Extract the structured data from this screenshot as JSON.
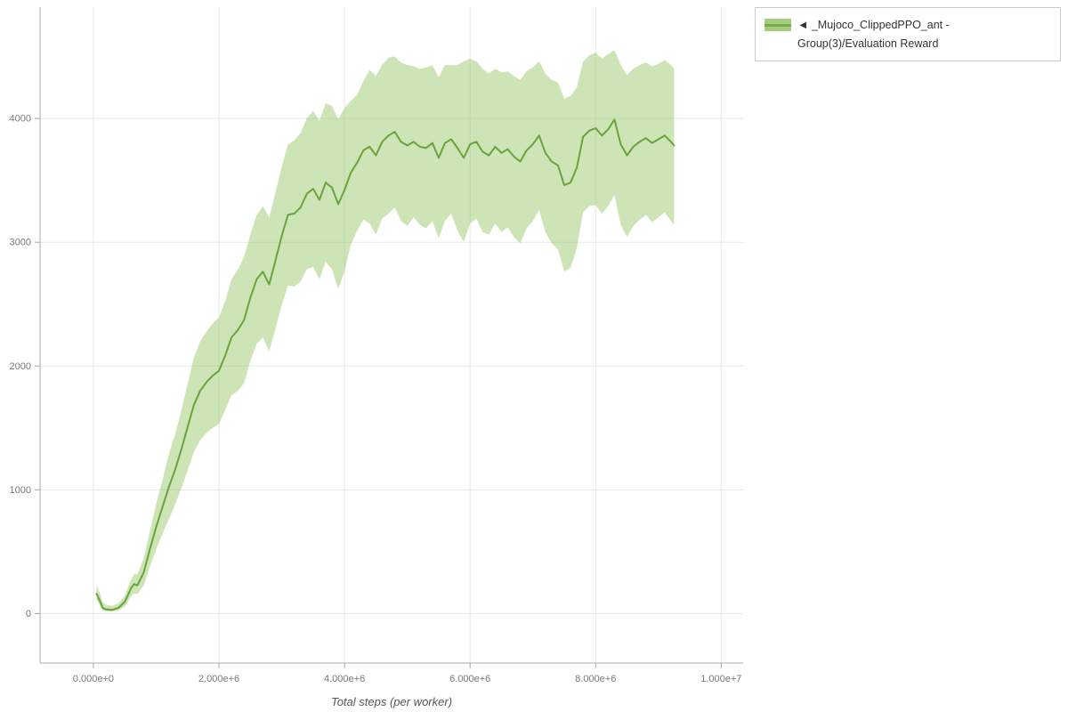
{
  "legend": {
    "label": "◄ _Mujoco_ClippedPPO_ant - Group(3)/Evaluation Reward"
  },
  "colors": {
    "line": "#69a33b",
    "band": "#9cc96e",
    "band_opacity": 0.5,
    "grid": "#e7e7e7",
    "axis": "#a8a8a8",
    "tick_label": "#777777",
    "axis_title": "#555555",
    "legend_border": "#cccccc"
  },
  "chart_data": {
    "type": "line",
    "title": "",
    "xlabel": "Total steps (per worker)",
    "ylabel": "",
    "grid": true,
    "legend_position": "top-right",
    "xlim": [
      -850000,
      10350000
    ],
    "ylim": [
      -400,
      4900
    ],
    "x_unit": 1000000,
    "x_ticks": [
      {
        "value": 0,
        "label": "0.000e+0"
      },
      {
        "value": 2000000,
        "label": "2.000e+6"
      },
      {
        "value": 4000000,
        "label": "4.000e+6"
      },
      {
        "value": 6000000,
        "label": "6.000e+6"
      },
      {
        "value": 8000000,
        "label": "8.000e+6"
      },
      {
        "value": 10000000,
        "label": "1.000e+7"
      }
    ],
    "y_ticks": [
      {
        "value": 0,
        "label": "0"
      },
      {
        "value": 1000,
        "label": "1000"
      },
      {
        "value": 2000,
        "label": "2000"
      },
      {
        "value": 3000,
        "label": "3000"
      },
      {
        "value": 4000,
        "label": "4000"
      }
    ],
    "series": [
      {
        "name": "_Mujoco_ClippedPPO_ant - Group(3)/Evaluation Reward",
        "legend_label": "◄ _Mujoco_ClippedPPO_ant - Group(3)/Evaluation Reward",
        "has_band": true,
        "points_format": [
          "x_millions",
          "y_mean",
          "y_lower",
          "y_upper"
        ],
        "points": [
          [
            0.05,
            160,
            115,
            230
          ],
          [
            0.1,
            105,
            65,
            170
          ],
          [
            0.15,
            45,
            22,
            90
          ],
          [
            0.2,
            34,
            18,
            70
          ],
          [
            0.3,
            30,
            16,
            62
          ],
          [
            0.4,
            46,
            24,
            84
          ],
          [
            0.5,
            95,
            55,
            145
          ],
          [
            0.6,
            205,
            140,
            275
          ],
          [
            0.65,
            238,
            165,
            320
          ],
          [
            0.7,
            228,
            158,
            315
          ],
          [
            0.8,
            330,
            225,
            445
          ],
          [
            0.9,
            520,
            380,
            665
          ],
          [
            1.0,
            700,
            520,
            885
          ],
          [
            1.1,
            860,
            645,
            1080
          ],
          [
            1.2,
            1020,
            760,
            1285
          ],
          [
            1.3,
            1160,
            880,
            1445
          ],
          [
            1.4,
            1325,
            1010,
            1640
          ],
          [
            1.5,
            1505,
            1155,
            1855
          ],
          [
            1.6,
            1685,
            1305,
            2065
          ],
          [
            1.7,
            1800,
            1400,
            2200
          ],
          [
            1.8,
            1868,
            1458,
            2278
          ],
          [
            1.9,
            1922,
            1500,
            2344
          ],
          [
            2.0,
            1962,
            1532,
            2392
          ],
          [
            2.1,
            2085,
            1645,
            2525
          ],
          [
            2.2,
            2232,
            1762,
            2702
          ],
          [
            2.3,
            2290,
            1800,
            2780
          ],
          [
            2.4,
            2372,
            1862,
            2882
          ],
          [
            2.5,
            2552,
            2042,
            3062
          ],
          [
            2.6,
            2700,
            2180,
            3220
          ],
          [
            2.7,
            2762,
            2232,
            3292
          ],
          [
            2.8,
            2658,
            2118,
            3198
          ],
          [
            2.9,
            2852,
            2302,
            3402
          ],
          [
            3.0,
            3052,
            2492,
            3612
          ],
          [
            3.1,
            3222,
            2652,
            3792
          ],
          [
            3.2,
            3232,
            2642,
            3822
          ],
          [
            3.3,
            3282,
            2682,
            3882
          ],
          [
            3.4,
            3392,
            2782,
            4002
          ],
          [
            3.5,
            3432,
            2802,
            4062
          ],
          [
            3.6,
            3342,
            2702,
            3982
          ],
          [
            3.7,
            3482,
            2842,
            4122
          ],
          [
            3.8,
            3442,
            2782,
            4102
          ],
          [
            3.9,
            3308,
            2622,
            3995
          ],
          [
            4.0,
            3422,
            2762,
            4082
          ],
          [
            4.1,
            3562,
            2982,
            4142
          ],
          [
            4.2,
            3642,
            3092,
            4192
          ],
          [
            4.3,
            3742,
            3182,
            4302
          ],
          [
            4.4,
            3772,
            3152,
            4392
          ],
          [
            4.5,
            3702,
            3062,
            4342
          ],
          [
            4.6,
            3812,
            3192,
            4432
          ],
          [
            4.7,
            3862,
            3232,
            4492
          ],
          [
            4.8,
            3892,
            3282,
            4502
          ],
          [
            4.9,
            3812,
            3172,
            4452
          ],
          [
            5.0,
            3782,
            3132,
            4432
          ],
          [
            5.1,
            3812,
            3202,
            4422
          ],
          [
            5.2,
            3772,
            3142,
            4402
          ],
          [
            5.3,
            3762,
            3112,
            4412
          ],
          [
            5.4,
            3802,
            3172,
            4432
          ],
          [
            5.5,
            3682,
            3032,
            4332
          ],
          [
            5.6,
            3802,
            3172,
            4432
          ],
          [
            5.7,
            3832,
            3232,
            4432
          ],
          [
            5.8,
            3762,
            3092,
            4432
          ],
          [
            5.9,
            3682,
            3002,
            4462
          ],
          [
            6.0,
            3792,
            3152,
            4482
          ],
          [
            6.1,
            3812,
            3192,
            4462
          ],
          [
            6.2,
            3732,
            3082,
            4402
          ],
          [
            6.3,
            3702,
            3062,
            4362
          ],
          [
            6.4,
            3772,
            3152,
            4402
          ],
          [
            6.5,
            3722,
            3082,
            4372
          ],
          [
            6.6,
            3752,
            3122,
            4382
          ],
          [
            6.7,
            3692,
            3042,
            4342
          ],
          [
            6.8,
            3652,
            2992,
            4312
          ],
          [
            6.9,
            3742,
            3112,
            4382
          ],
          [
            7.0,
            3792,
            3172,
            4412
          ],
          [
            7.1,
            3862,
            3262,
            4462
          ],
          [
            7.2,
            3722,
            3082,
            4362
          ],
          [
            7.3,
            3652,
            2992,
            4312
          ],
          [
            7.4,
            3622,
            2942,
            4292
          ],
          [
            7.5,
            3462,
            2762,
            4162
          ],
          [
            7.6,
            3482,
            2792,
            4182
          ],
          [
            7.7,
            3602,
            2952,
            4252
          ],
          [
            7.8,
            3852,
            3242,
            4462
          ],
          [
            7.9,
            3902,
            3292,
            4512
          ],
          [
            8.0,
            3922,
            3302,
            4532
          ],
          [
            8.1,
            3862,
            3232,
            4482
          ],
          [
            8.2,
            3912,
            3292,
            4522
          ],
          [
            8.3,
            3992,
            3382,
            4552
          ],
          [
            8.4,
            3792,
            3142,
            4432
          ],
          [
            8.5,
            3702,
            3042,
            4352
          ],
          [
            8.6,
            3772,
            3132,
            4402
          ],
          [
            8.7,
            3812,
            3182,
            4432
          ],
          [
            8.8,
            3842,
            3222,
            4452
          ],
          [
            8.9,
            3802,
            3162,
            4422
          ],
          [
            9.0,
            3832,
            3202,
            4442
          ],
          [
            9.1,
            3862,
            3242,
            4472
          ],
          [
            9.2,
            3812,
            3172,
            4432
          ],
          [
            9.25,
            3782,
            3142,
            4402
          ]
        ]
      }
    ]
  }
}
